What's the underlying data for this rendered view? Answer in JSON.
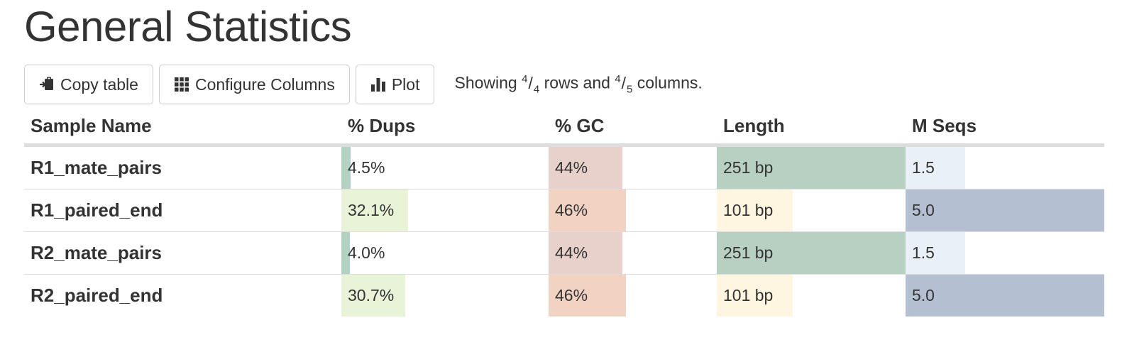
{
  "title": "General Statistics",
  "toolbar": {
    "copy_label": "Copy table",
    "configure_label": "Configure Columns",
    "plot_label": "Plot"
  },
  "status": {
    "prefix": "Showing ",
    "rows_shown": "4",
    "rows_total": "4",
    "middle": " rows and ",
    "cols_shown": "4",
    "cols_total": "5",
    "suffix": " columns."
  },
  "table": {
    "headers": [
      "Sample Name",
      "% Dups",
      "% GC",
      "Length",
      "M Seqs"
    ],
    "rows": [
      {
        "name": "R1_mate_pairs",
        "dups": {
          "text": "4.5%",
          "fraction": 0.045,
          "color": "#b4d2c3"
        },
        "gc": {
          "text": "44%",
          "fraction": 0.44,
          "color": "#e8d1cb"
        },
        "length": {
          "text": "251 bp",
          "fraction": 1.0,
          "color": "#b8d0c2"
        },
        "mseqs": {
          "text": "1.5",
          "fraction": 0.3,
          "color": "#eaf0f7"
        }
      },
      {
        "name": "R1_paired_end",
        "dups": {
          "text": "32.1%",
          "fraction": 0.321,
          "color": "#e8f3d8"
        },
        "gc": {
          "text": "46%",
          "fraction": 0.46,
          "color": "#f2d3c3"
        },
        "length": {
          "text": "101 bp",
          "fraction": 0.402,
          "color": "#fef6e0"
        },
        "mseqs": {
          "text": "5.0",
          "fraction": 1.0,
          "color": "#b4bfd1"
        }
      },
      {
        "name": "R2_mate_pairs",
        "dups": {
          "text": "4.0%",
          "fraction": 0.04,
          "color": "#b4d2c3"
        },
        "gc": {
          "text": "44%",
          "fraction": 0.44,
          "color": "#e8d1cb"
        },
        "length": {
          "text": "251 bp",
          "fraction": 1.0,
          "color": "#b8d0c2"
        },
        "mseqs": {
          "text": "1.5",
          "fraction": 0.3,
          "color": "#eaf0f7"
        }
      },
      {
        "name": "R2_paired_end",
        "dups": {
          "text": "30.7%",
          "fraction": 0.307,
          "color": "#e8f3d8"
        },
        "gc": {
          "text": "46%",
          "fraction": 0.46,
          "color": "#f2d3c3"
        },
        "length": {
          "text": "101 bp",
          "fraction": 0.402,
          "color": "#fef6e0"
        },
        "mseqs": {
          "text": "5.0",
          "fraction": 1.0,
          "color": "#b4bfd1"
        }
      }
    ]
  },
  "icons": {
    "copy": "clipboard-icon",
    "configure": "grid-icon",
    "plot": "bar-chart-icon"
  }
}
